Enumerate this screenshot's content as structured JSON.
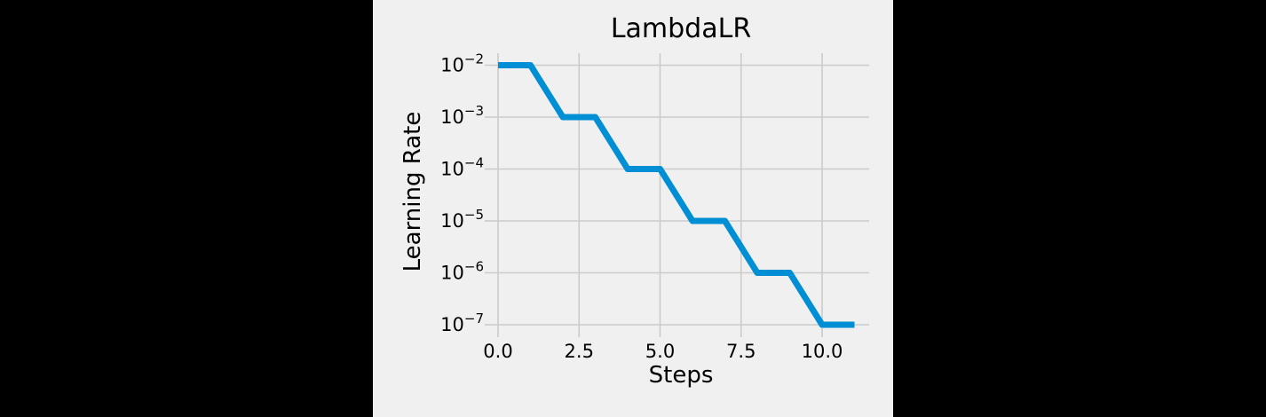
{
  "figure": {
    "background_color": "#f0f0f0",
    "letterbox_color": "#000000"
  },
  "chart_data": {
    "type": "line",
    "title": "LambdaLR",
    "xlabel": "Steps",
    "ylabel": "Learning Rate",
    "x": [
      0,
      1,
      2,
      3,
      4,
      5,
      6,
      7,
      8,
      9,
      10,
      11
    ],
    "y": [
      0.01,
      0.01,
      0.001,
      0.001,
      0.0001,
      0.0001,
      1e-05,
      1e-05,
      1e-06,
      1e-06,
      1e-07,
      1e-07
    ],
    "yscale": "log",
    "x_ticks": [
      0.0,
      2.5,
      5.0,
      7.5,
      10.0
    ],
    "x_tick_labels": [
      "0.0",
      "2.5",
      "5.0",
      "7.5",
      "10.0"
    ],
    "y_tick_exponents": [
      -2,
      -3,
      -4,
      -5,
      -6,
      -7
    ],
    "xlim": [
      -0.2,
      11.5
    ],
    "ylim": [
      5e-08,
      0.02
    ],
    "grid": true,
    "legend": false,
    "line_color": "#008fd5",
    "line_width": 7,
    "grid_color": "#cbcbcb",
    "text_color": "#000000"
  }
}
